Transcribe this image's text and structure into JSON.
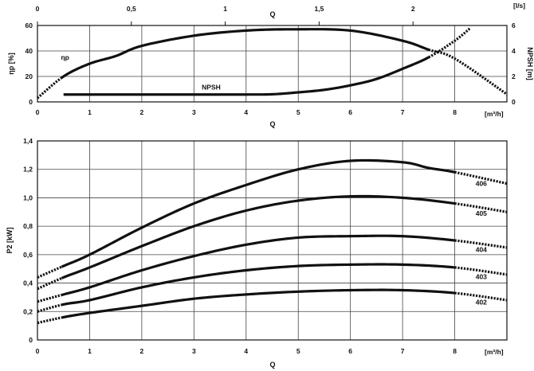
{
  "chart_data": [
    {
      "type": "line",
      "x": [
        0.5,
        1,
        1.5,
        2,
        3,
        4,
        4.9,
        6,
        7,
        7.5,
        8,
        9
      ],
      "xlabel": "Q",
      "xunit": "[m³/h]",
      "xlim": [
        0,
        9
      ],
      "xticks": [
        "0",
        "1",
        "2",
        "3",
        "4",
        "5",
        "6",
        "7",
        "8"
      ],
      "x2label": "Q",
      "x2unit": "[l/s]",
      "x2lim": [
        0,
        2.5
      ],
      "x2ticks": [
        "0",
        "0,5",
        "1",
        "1,5",
        "2"
      ],
      "ylabel": "ηp [%]",
      "ylim": [
        0,
        60
      ],
      "yticks": [
        "0",
        "20",
        "40",
        "60"
      ],
      "y2label": "NPSH [m]",
      "y2lim": [
        0,
        6
      ],
      "y2ticks": [
        "0",
        "2",
        "4",
        "6"
      ],
      "grid": true,
      "series": [
        {
          "name": "ηp",
          "axis": "left",
          "points": [
            [
              0,
              3
            ],
            [
              0.5,
              20
            ],
            [
              1,
              30
            ],
            [
              1.5,
              36
            ],
            [
              2,
              44
            ],
            [
              3,
              52
            ],
            [
              4,
              56
            ],
            [
              4.9,
              57
            ],
            [
              6,
              56
            ],
            [
              7,
              48
            ],
            [
              7.5,
              41
            ],
            [
              8,
              34
            ],
            [
              9,
              6
            ]
          ],
          "solid_range": [
            0.5,
            7.5
          ]
        },
        {
          "name": "NPSH",
          "axis": "right",
          "points": [
            [
              0.5,
              0.58
            ],
            [
              1,
              0.58
            ],
            [
              2,
              0.58
            ],
            [
              3,
              0.58
            ],
            [
              4,
              0.58
            ],
            [
              4.5,
              0.6
            ],
            [
              5,
              0.75
            ],
            [
              5.5,
              0.95
            ],
            [
              6,
              1.3
            ],
            [
              6.5,
              1.8
            ],
            [
              7,
              2.6
            ],
            [
              7.5,
              3.5
            ],
            [
              8,
              4.8
            ],
            [
              8.3,
              5.8
            ]
          ],
          "solid_range": [
            0.5,
            7.5
          ]
        }
      ]
    },
    {
      "type": "line",
      "xlabel": "Q",
      "xunit": "[m³/h]",
      "xlim": [
        0,
        9
      ],
      "xticks": [
        "0",
        "1",
        "2",
        "3",
        "4",
        "5",
        "6",
        "7",
        "8"
      ],
      "ylabel": "P2 [kW]",
      "ylim": [
        0,
        1.4
      ],
      "yticks": [
        "0",
        "0,2",
        "0,4",
        "0,6",
        "0,8",
        "1,0",
        "1,2",
        "1,4"
      ],
      "grid": true,
      "series": [
        {
          "name": "406",
          "points": [
            [
              0,
              0.44
            ],
            [
              0.5,
              0.52
            ],
            [
              1,
              0.6
            ],
            [
              2,
              0.79
            ],
            [
              3,
              0.96
            ],
            [
              4,
              1.09
            ],
            [
              5,
              1.2
            ],
            [
              6,
              1.26
            ],
            [
              7,
              1.25
            ],
            [
              7.5,
              1.21
            ],
            [
              8,
              1.18
            ],
            [
              9,
              1.1
            ]
          ],
          "solid_range": [
            0.5,
            8
          ]
        },
        {
          "name": "405",
          "points": [
            [
              0,
              0.36
            ],
            [
              0.5,
              0.44
            ],
            [
              1,
              0.51
            ],
            [
              2,
              0.66
            ],
            [
              3,
              0.8
            ],
            [
              4,
              0.91
            ],
            [
              5,
              0.98
            ],
            [
              6,
              1.01
            ],
            [
              7,
              1.0
            ],
            [
              8,
              0.96
            ],
            [
              9,
              0.9
            ]
          ],
          "solid_range": [
            0.5,
            8
          ]
        },
        {
          "name": "404",
          "points": [
            [
              0,
              0.27
            ],
            [
              0.5,
              0.32
            ],
            [
              1,
              0.37
            ],
            [
              2,
              0.49
            ],
            [
              3,
              0.59
            ],
            [
              4,
              0.67
            ],
            [
              5,
              0.72
            ],
            [
              6,
              0.73
            ],
            [
              7,
              0.73
            ],
            [
              8,
              0.7
            ],
            [
              9,
              0.65
            ]
          ],
          "solid_range": [
            0.5,
            8
          ]
        },
        {
          "name": "403",
          "points": [
            [
              0,
              0.2
            ],
            [
              0.5,
              0.25
            ],
            [
              1,
              0.28
            ],
            [
              2,
              0.37
            ],
            [
              3,
              0.44
            ],
            [
              4,
              0.49
            ],
            [
              5,
              0.52
            ],
            [
              6,
              0.53
            ],
            [
              7,
              0.53
            ],
            [
              8,
              0.51
            ],
            [
              9,
              0.46
            ]
          ],
          "solid_range": [
            0.5,
            8
          ]
        },
        {
          "name": "402",
          "points": [
            [
              0,
              0.12
            ],
            [
              0.5,
              0.16
            ],
            [
              1,
              0.19
            ],
            [
              2,
              0.24
            ],
            [
              3,
              0.29
            ],
            [
              4,
              0.32
            ],
            [
              5,
              0.34
            ],
            [
              6,
              0.35
            ],
            [
              7,
              0.35
            ],
            [
              8,
              0.33
            ],
            [
              9,
              0.28
            ]
          ],
          "solid_range": [
            0.5,
            8
          ]
        }
      ]
    }
  ]
}
